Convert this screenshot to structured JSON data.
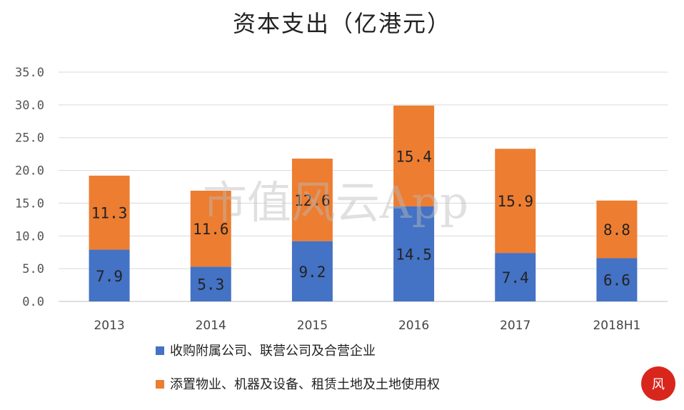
{
  "chart_data": {
    "type": "bar",
    "stacked": true,
    "title": "资本支出（亿港元）",
    "categories": [
      "2013",
      "2014",
      "2015",
      "2016",
      "2017",
      "2018H1"
    ],
    "series": [
      {
        "name": "收购附属公司、联营公司及合营企业",
        "color": "#4472C4",
        "values": [
          7.9,
          5.3,
          9.2,
          14.5,
          7.4,
          6.6
        ],
        "labels": [
          "7.9",
          "5.3",
          "9.2",
          "14.5",
          "7.4",
          "6.6"
        ]
      },
      {
        "name": "添置物业、机器及设备、租赁土地及土地使用权",
        "color": "#ED7D31",
        "values": [
          11.3,
          11.6,
          12.6,
          15.4,
          15.9,
          8.8
        ],
        "labels": [
          "11.3",
          "11.6",
          "12.6",
          "15.4",
          "15.9",
          "8.8"
        ]
      }
    ],
    "ylim": [
      0,
      35
    ],
    "yticks": [
      "0.0",
      "5.0",
      "10.0",
      "15.0",
      "20.0",
      "25.0",
      "30.0",
      "35.0"
    ],
    "grid": true,
    "legend": "bottom-left",
    "xlabel": "",
    "ylabel": ""
  },
  "watermark": "市值风云App"
}
